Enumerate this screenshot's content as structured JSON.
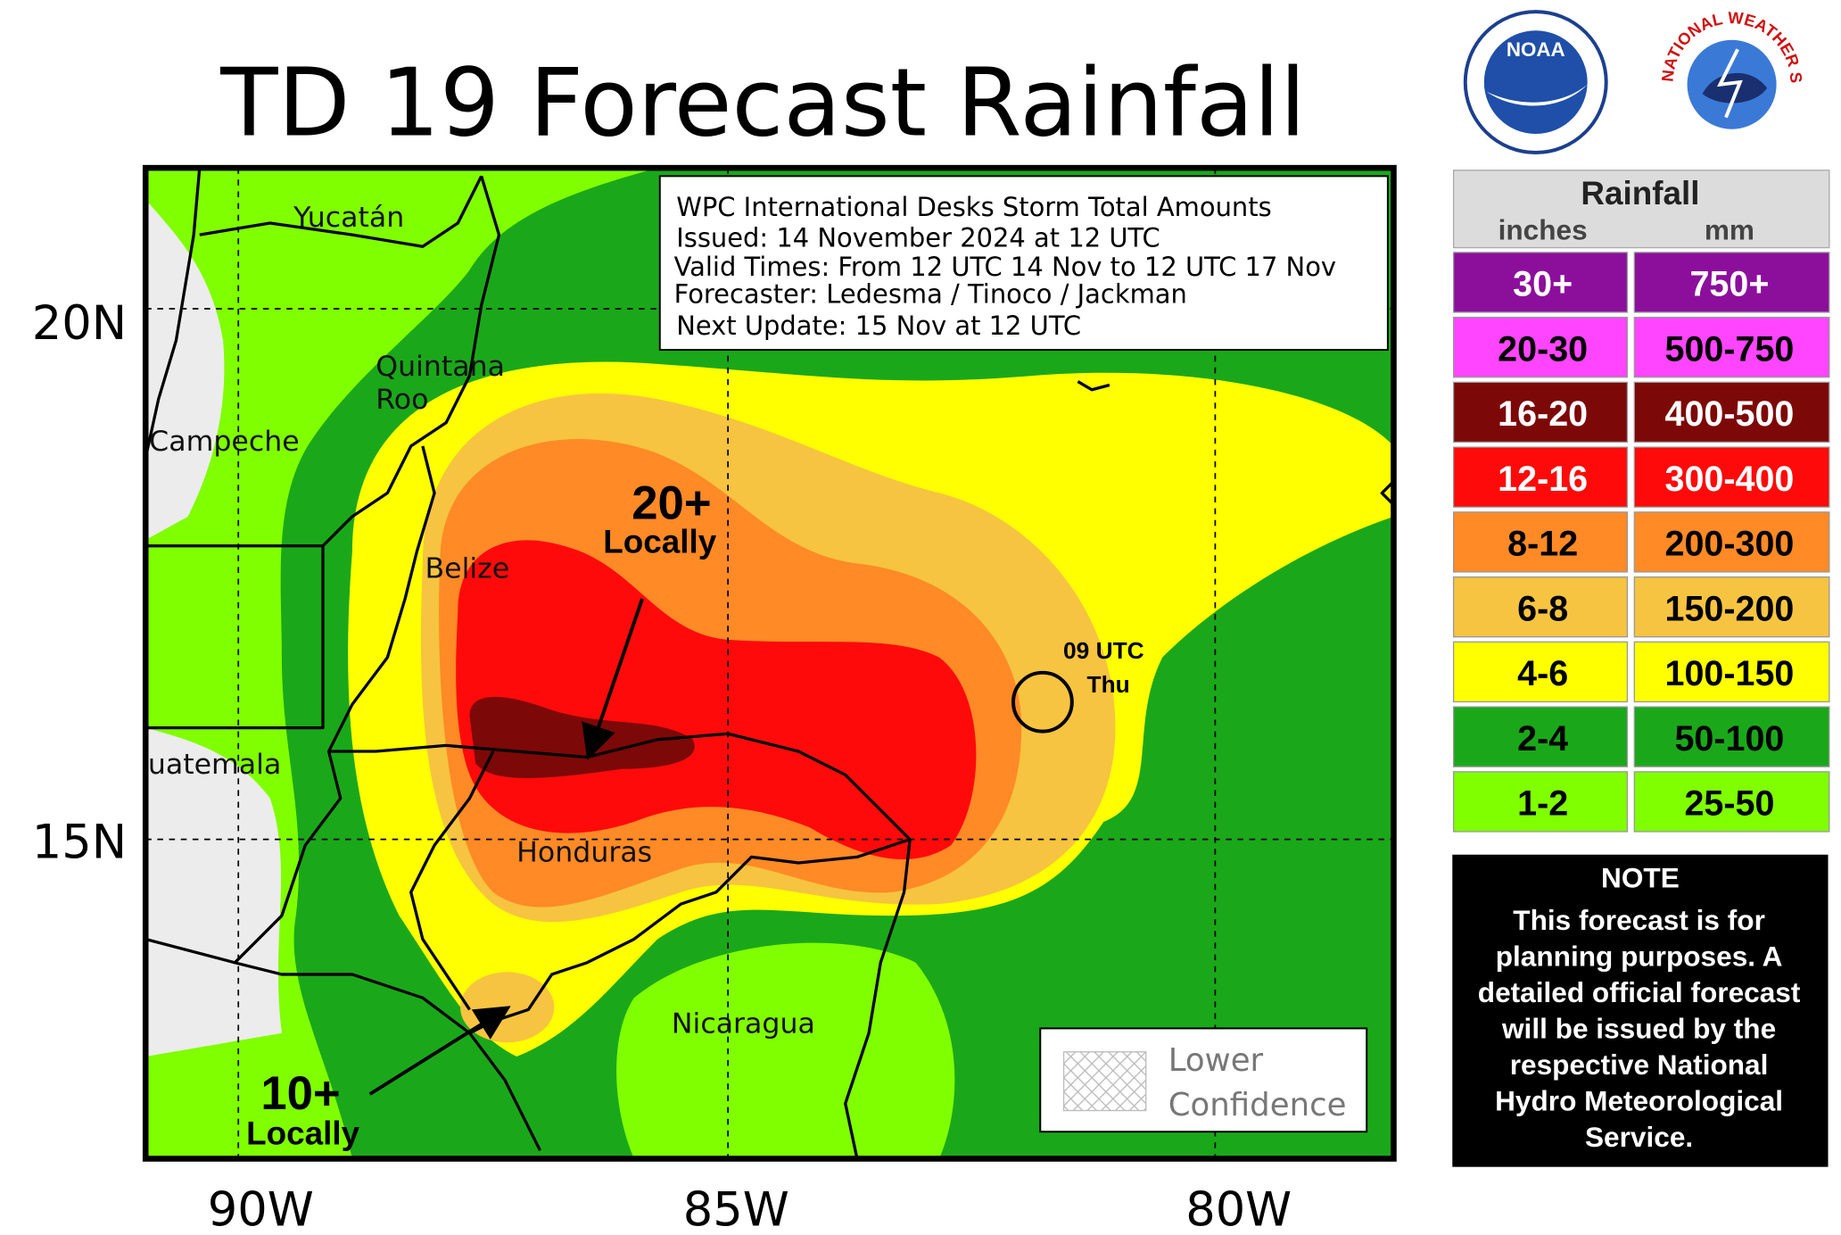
{
  "header": {
    "title": "TD 19 Forecast Rainfall",
    "logos": [
      "NOAA",
      "NATIONAL WEATHER SERVICE"
    ]
  },
  "info_box": {
    "lines": [
      "WPC International Desks Storm Total Amounts",
      "Issued:  14 November 2024 at 12 UTC",
      "Valid Times:  From 12 UTC 14 Nov  to  12 UTC 17 Nov",
      "Forecaster:  Ledesma / Tinoco / Jackman",
      "Next Update: 15 Nov at 12 UTC"
    ]
  },
  "map": {
    "places": [
      "Yucatán",
      "Quintana",
      "Roo",
      "Campeche",
      "Belize",
      "uatemala",
      "Honduras",
      "Nicaragua"
    ],
    "lat_labels": [
      "20N",
      "15N"
    ],
    "lon_labels": [
      "90W",
      "85W",
      "80W"
    ],
    "annotations": {
      "high": "20+",
      "high_sub": "Locally",
      "low": "10+",
      "low_sub": "Locally",
      "time": "09 UTC",
      "day": "Thu"
    },
    "confidence_key": [
      "Lower",
      "Confidence"
    ]
  },
  "legend": {
    "title": "Rainfall",
    "units": [
      "inches",
      "mm"
    ],
    "rows": [
      {
        "inches": "30+",
        "mm": "750+",
        "color": "#8c0f9c"
      },
      {
        "inches": "20-30",
        "mm": "500-750",
        "color": "#ff45ff"
      },
      {
        "inches": "16-20",
        "mm": "400-500",
        "color": "#7d0808"
      },
      {
        "inches": "12-16",
        "mm": "300-400",
        "color": "#ff0a0a"
      },
      {
        "inches": "8-12",
        "mm": "200-300",
        "color": "#ff8a26"
      },
      {
        "inches": "6-8",
        "mm": "150-200",
        "color": "#f6c440"
      },
      {
        "inches": "4-6",
        "mm": "100-150",
        "color": "#ffff00"
      },
      {
        "inches": "2-4",
        "mm": "50-100",
        "color": "#1aa81a"
      },
      {
        "inches": "1-2",
        "mm": "25-50",
        "color": "#80ff00"
      }
    ]
  },
  "note": {
    "title": "NOTE",
    "lines": [
      "This forecast is for",
      "planning purposes. A",
      "detailed official forecast",
      "will be issued by the",
      "respective National",
      "Hydro Meteorological",
      "Service."
    ]
  }
}
